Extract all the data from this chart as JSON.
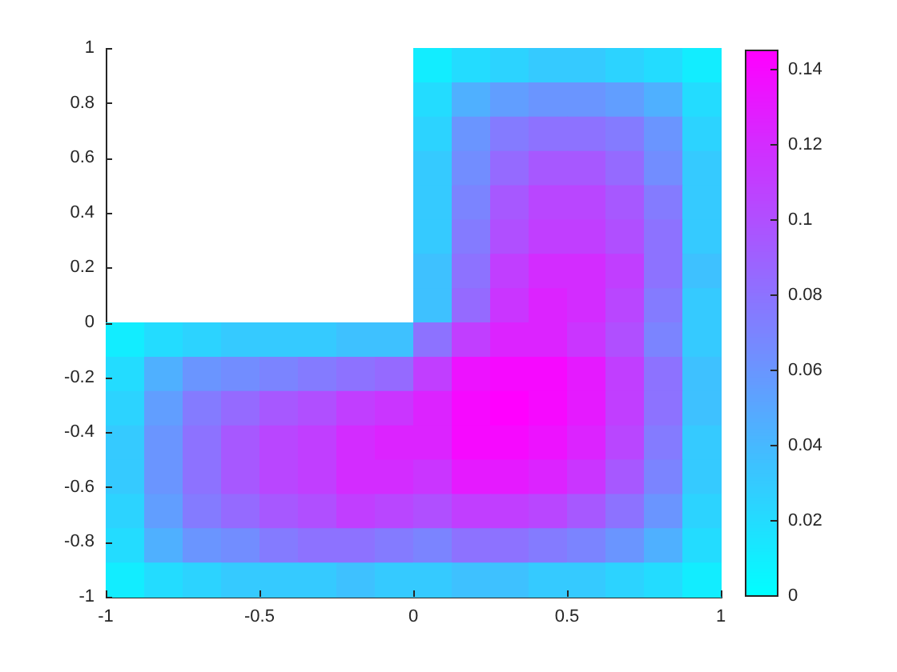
{
  "chart_data": {
    "type": "heatmap",
    "xlim": [
      -1,
      1
    ],
    "ylim": [
      -1,
      1
    ],
    "xticks": [
      -1,
      -0.5,
      0,
      0.5,
      1
    ],
    "yticks": [
      -1,
      -0.8,
      -0.6,
      -0.4,
      -0.2,
      0,
      0.2,
      0.4,
      0.6,
      0.8,
      1
    ],
    "clim": [
      0,
      0.145
    ],
    "cticks": [
      0,
      0.02,
      0.04,
      0.06,
      0.08,
      0.1,
      0.12,
      0.14
    ],
    "colors": [
      "#00ffff",
      "#ff00ff"
    ],
    "cells": [
      [
        null,
        null,
        null,
        null,
        null,
        null,
        null,
        null,
        0.01,
        0.02,
        0.025,
        0.03,
        0.03,
        0.025,
        0.02,
        0.01
      ],
      [
        null,
        null,
        null,
        null,
        null,
        null,
        null,
        null,
        0.02,
        0.045,
        0.055,
        0.06,
        0.06,
        0.055,
        0.045,
        0.02
      ],
      [
        null,
        null,
        null,
        null,
        null,
        null,
        null,
        null,
        0.025,
        0.06,
        0.075,
        0.08,
        0.08,
        0.075,
        0.06,
        0.025
      ],
      [
        null,
        null,
        null,
        null,
        null,
        null,
        null,
        null,
        0.03,
        0.065,
        0.085,
        0.095,
        0.095,
        0.085,
        0.065,
        0.03
      ],
      [
        null,
        null,
        null,
        null,
        null,
        null,
        null,
        null,
        0.03,
        0.07,
        0.095,
        0.105,
        0.105,
        0.095,
        0.075,
        0.03
      ],
      [
        null,
        null,
        null,
        null,
        null,
        null,
        null,
        null,
        0.03,
        0.075,
        0.1,
        0.11,
        0.11,
        0.1,
        0.08,
        0.03
      ],
      [
        null,
        null,
        null,
        null,
        null,
        null,
        null,
        null,
        0.035,
        0.08,
        0.11,
        0.12,
        0.12,
        0.11,
        0.08,
        0.035
      ],
      [
        null,
        null,
        null,
        null,
        null,
        null,
        null,
        null,
        0.035,
        0.085,
        0.115,
        0.125,
        0.12,
        0.105,
        0.075,
        0.03
      ],
      [
        0.01,
        0.02,
        0.025,
        0.03,
        0.03,
        0.03,
        0.035,
        0.035,
        0.08,
        0.11,
        0.125,
        0.125,
        0.115,
        0.1,
        0.07,
        0.03
      ],
      [
        0.02,
        0.045,
        0.06,
        0.065,
        0.07,
        0.075,
        0.08,
        0.085,
        0.11,
        0.135,
        0.14,
        0.14,
        0.13,
        0.11,
        0.08,
        0.035
      ],
      [
        0.025,
        0.055,
        0.075,
        0.085,
        0.095,
        0.1,
        0.11,
        0.115,
        0.125,
        0.14,
        0.145,
        0.14,
        0.13,
        0.11,
        0.08,
        0.035
      ],
      [
        0.03,
        0.06,
        0.08,
        0.095,
        0.105,
        0.11,
        0.12,
        0.125,
        0.125,
        0.14,
        0.14,
        0.135,
        0.125,
        0.105,
        0.075,
        0.03
      ],
      [
        0.03,
        0.06,
        0.08,
        0.095,
        0.105,
        0.11,
        0.12,
        0.12,
        0.115,
        0.13,
        0.13,
        0.125,
        0.115,
        0.095,
        0.07,
        0.03
      ],
      [
        0.025,
        0.055,
        0.075,
        0.085,
        0.095,
        0.1,
        0.11,
        0.105,
        0.1,
        0.11,
        0.11,
        0.105,
        0.095,
        0.08,
        0.06,
        0.025
      ],
      [
        0.02,
        0.045,
        0.06,
        0.065,
        0.075,
        0.08,
        0.08,
        0.075,
        0.07,
        0.08,
        0.08,
        0.075,
        0.07,
        0.06,
        0.045,
        0.02
      ],
      [
        0.01,
        0.02,
        0.025,
        0.03,
        0.03,
        0.03,
        0.035,
        0.03,
        0.03,
        0.035,
        0.035,
        0.03,
        0.03,
        0.025,
        0.02,
        0.01
      ]
    ]
  }
}
